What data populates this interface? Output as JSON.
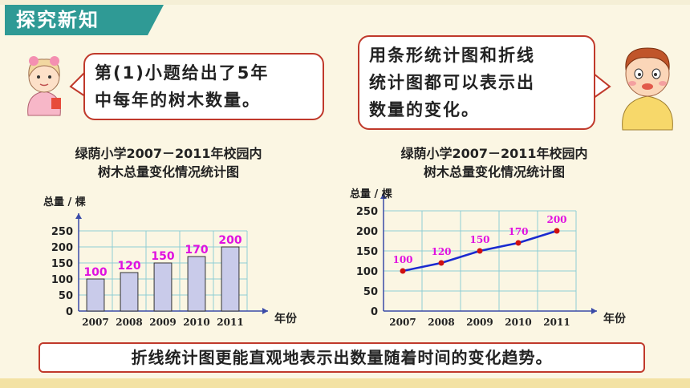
{
  "header": {
    "tag": "探究新知"
  },
  "bubbles": {
    "girl_line1": "第(1)小题给出了5年",
    "girl_line2": "中每年的树木数量。",
    "boy_line1": "用条形统计图和折线",
    "boy_line2": "统计图都可以表示出",
    "boy_line3": "数量的变化。"
  },
  "chart_data": [
    {
      "type": "bar",
      "title_line1": "绿荫小学2007－2011年校园内",
      "title_line2": "树木总量变化情况统计图",
      "ylabel": "总量 / 棵",
      "xlabel": "年份",
      "categories": [
        "2007",
        "2008",
        "2009",
        "2010",
        "2011"
      ],
      "values": [
        100,
        120,
        150,
        170,
        200
      ],
      "yticks": [
        "0",
        "50",
        "100",
        "150",
        "200",
        "250"
      ],
      "ylim": [
        0,
        250
      ],
      "grid": true,
      "bar_color": "#c9cbea",
      "label_color": "#e010e0"
    },
    {
      "type": "line",
      "title_line1": "绿荫小学2007－2011年校园内",
      "title_line2": "树木总量变化情况统计图",
      "ylabel": "总量 / 棵",
      "xlabel": "年份",
      "categories": [
        "2007",
        "2008",
        "2009",
        "2010",
        "2011"
      ],
      "values": [
        100,
        120,
        150,
        170,
        200
      ],
      "yticks": [
        "0",
        "50",
        "100",
        "150",
        "200",
        "250"
      ],
      "ylim": [
        0,
        250
      ],
      "grid": true,
      "line_color": "#1a2ad0",
      "point_color": "#d01010",
      "label_color": "#e010e0"
    }
  ],
  "conclusion": "折线统计图更能直观地表示出数量随着时间的变化趋势。"
}
